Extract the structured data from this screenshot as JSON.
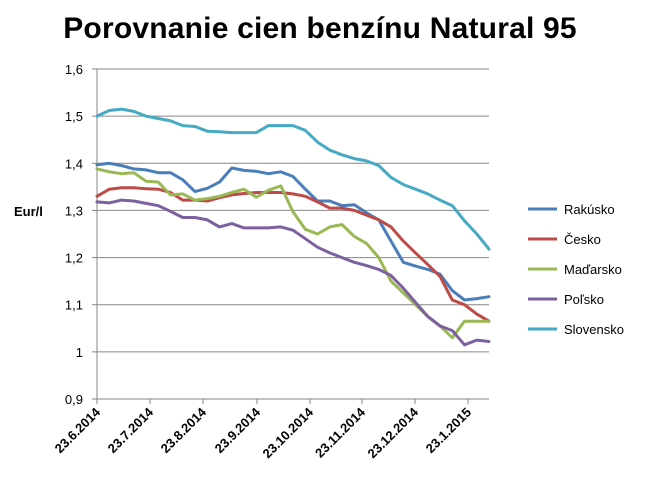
{
  "chart_data": {
    "type": "line",
    "title": "Porovnanie cien benzínu Natural 95",
    "xlabel": "",
    "ylabel": "Eur/l",
    "ylim": [
      0.9,
      1.6
    ],
    "yticks": [
      "0,9",
      "1",
      "1,1",
      "1,2",
      "1,3",
      "1,4",
      "1,5",
      "1,6"
    ],
    "xticks": [
      "23.6.2014",
      "23.7.2014",
      "23.8.2014",
      "23.9.2014",
      "23.10.2014",
      "23.11.2014",
      "23.12.2014",
      "23.1.2015"
    ],
    "grid": true,
    "legend_position": "right",
    "series": [
      {
        "name": "Rakúsko",
        "color": "#4a7ebb",
        "values": [
          1.397,
          1.4,
          1.395,
          1.388,
          1.386,
          1.38,
          1.38,
          1.365,
          1.34,
          1.347,
          1.36,
          1.39,
          1.385,
          1.383,
          1.378,
          1.382,
          1.372,
          1.345,
          1.32,
          1.32,
          1.31,
          1.312,
          1.295,
          1.28,
          1.235,
          1.19,
          1.182,
          1.175,
          1.165,
          1.13,
          1.11,
          1.113,
          1.117
        ]
      },
      {
        "name": "Česko",
        "color": "#be4b48",
        "values": [
          1.33,
          1.345,
          1.348,
          1.348,
          1.346,
          1.345,
          1.338,
          1.322,
          1.322,
          1.32,
          1.327,
          1.333,
          1.336,
          1.338,
          1.338,
          1.338,
          1.335,
          1.33,
          1.318,
          1.305,
          1.305,
          1.3,
          1.29,
          1.28,
          1.265,
          1.235,
          1.21,
          1.185,
          1.16,
          1.11,
          1.1,
          1.08,
          1.065
        ]
      },
      {
        "name": "Maďarsko",
        "color": "#98b954",
        "values": [
          1.388,
          1.382,
          1.378,
          1.38,
          1.362,
          1.36,
          1.333,
          1.335,
          1.322,
          1.325,
          1.33,
          1.338,
          1.345,
          1.328,
          1.343,
          1.352,
          1.297,
          1.26,
          1.25,
          1.265,
          1.27,
          1.245,
          1.23,
          1.2,
          1.15,
          1.125,
          1.1,
          1.075,
          1.055,
          1.03,
          1.065,
          1.065,
          1.065
        ]
      },
      {
        "name": "Poľsko",
        "color": "#7d60a0",
        "values": [
          1.318,
          1.316,
          1.322,
          1.32,
          1.315,
          1.31,
          1.298,
          1.285,
          1.285,
          1.28,
          1.265,
          1.272,
          1.263,
          1.263,
          1.263,
          1.265,
          1.258,
          1.24,
          1.222,
          1.21,
          1.2,
          1.19,
          1.183,
          1.175,
          1.162,
          1.135,
          1.105,
          1.075,
          1.055,
          1.045,
          1.015,
          1.025,
          1.022
        ]
      },
      {
        "name": "Slovensko",
        "color": "#46aac5",
        "values": [
          1.5,
          1.512,
          1.515,
          1.51,
          1.5,
          1.495,
          1.49,
          1.48,
          1.478,
          1.468,
          1.467,
          1.465,
          1.465,
          1.465,
          1.48,
          1.48,
          1.48,
          1.47,
          1.445,
          1.428,
          1.418,
          1.41,
          1.405,
          1.395,
          1.37,
          1.355,
          1.345,
          1.335,
          1.322,
          1.31,
          1.278,
          1.25,
          1.218
        ]
      }
    ]
  }
}
